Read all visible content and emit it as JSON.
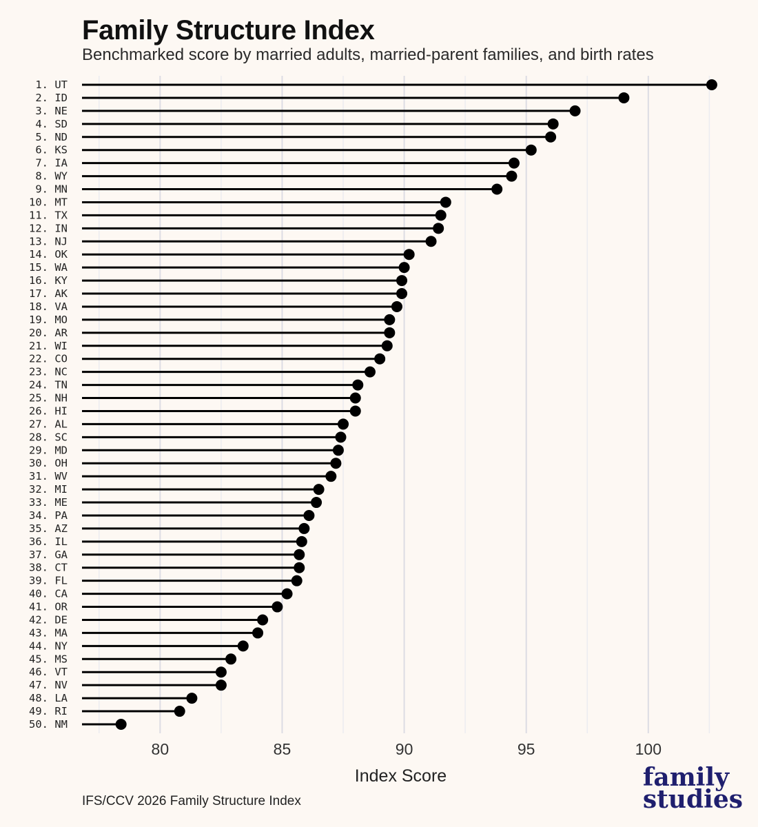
{
  "header": {
    "title": "Family Structure Index",
    "subtitle": "Benchmarked score by married adults, married-parent families, and birth rates"
  },
  "footer": {
    "source": "IFS/CCV 2026 Family Structure Index",
    "logo_line1": "family",
    "logo_line2": "studies"
  },
  "colors": {
    "background": "#fdf8f3",
    "mark": "#000000",
    "grid_major": "#dcdce3",
    "grid_minor": "#ececf0",
    "logo": "#1f1f6e"
  },
  "chart_data": {
    "type": "lollipop",
    "title": "Family Structure Index",
    "subtitle": "Benchmarked score by married adults, married-parent families, and birth rates",
    "xlabel": "Index Score",
    "ylabel": "",
    "xlim": [
      76.8,
      102.8
    ],
    "baseline": 76.8,
    "xticks": [
      80,
      85,
      90,
      95,
      100
    ],
    "grid": true,
    "categories": [
      "1. UT",
      "2. ID",
      "3. NE",
      "4. SD",
      "5. ND",
      "6. KS",
      "7. IA",
      "8. WY",
      "9. MN",
      "10. MT",
      "11. TX",
      "12. IN",
      "13. NJ",
      "14. OK",
      "15. WA",
      "16. KY",
      "17. AK",
      "18. VA",
      "19. MO",
      "20. AR",
      "21. WI",
      "22. CO",
      "23. NC",
      "24. TN",
      "25. NH",
      "26. HI",
      "27. AL",
      "28. SC",
      "29. MD",
      "30. OH",
      "31. WV",
      "32. MI",
      "33. ME",
      "34. PA",
      "35. AZ",
      "36. IL",
      "37. GA",
      "38. CT",
      "39. FL",
      "40. CA",
      "41. OR",
      "42. DE",
      "43. MA",
      "44. NY",
      "45. MS",
      "46. VT",
      "47. NV",
      "48. LA",
      "49. RI",
      "50. NM"
    ],
    "values": [
      102.6,
      99.0,
      97.0,
      96.1,
      96.0,
      95.2,
      94.5,
      94.4,
      93.8,
      91.7,
      91.5,
      91.4,
      91.1,
      90.2,
      90.0,
      89.9,
      89.9,
      89.7,
      89.4,
      89.4,
      89.3,
      89.0,
      88.6,
      88.1,
      88.0,
      88.0,
      87.5,
      87.4,
      87.3,
      87.2,
      87.0,
      86.5,
      86.4,
      86.1,
      85.9,
      85.8,
      85.7,
      85.7,
      85.6,
      85.2,
      84.8,
      84.2,
      84.0,
      83.4,
      82.9,
      82.5,
      82.5,
      81.3,
      80.8,
      78.4
    ]
  }
}
